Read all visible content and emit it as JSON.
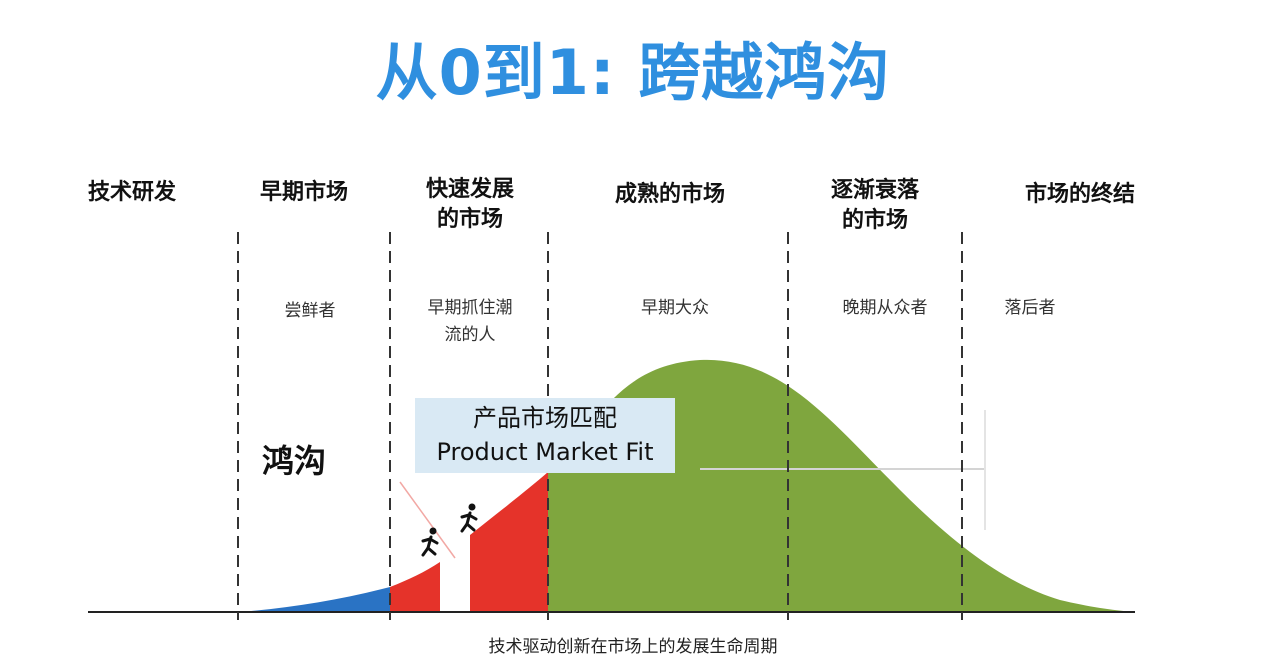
{
  "title": "从0到1: 跨越鸿沟",
  "title_color": "#2f8fdf",
  "phases": [
    {
      "label": "技术研发"
    },
    {
      "label": "早期市场"
    },
    {
      "label": "快速发展\n的市场"
    },
    {
      "label": "成熟的市场"
    },
    {
      "label": "逐渐衰落\n的市场"
    },
    {
      "label": "市场的终结"
    }
  ],
  "adopter_groups": [
    {
      "label": "尝鲜者"
    },
    {
      "label": "早期抓住潮\n流的人"
    },
    {
      "label": "早期大众"
    },
    {
      "label": "晚期从众者"
    },
    {
      "label": "落后者"
    }
  ],
  "chasm_label": "鸿沟",
  "pmf_label": {
    "line1": "产品市场匹配",
    "line2": "Product Market Fit"
  },
  "caption": "技术驱动创新在市场上的发展生命周期",
  "colors": {
    "innovators": "#2a73c4",
    "early_adopters": "#e5332a",
    "majority": "#7fa63e",
    "pmf_box": "#d9e9f4"
  },
  "icons": [
    "running-person-icon",
    "running-person-icon"
  ]
}
